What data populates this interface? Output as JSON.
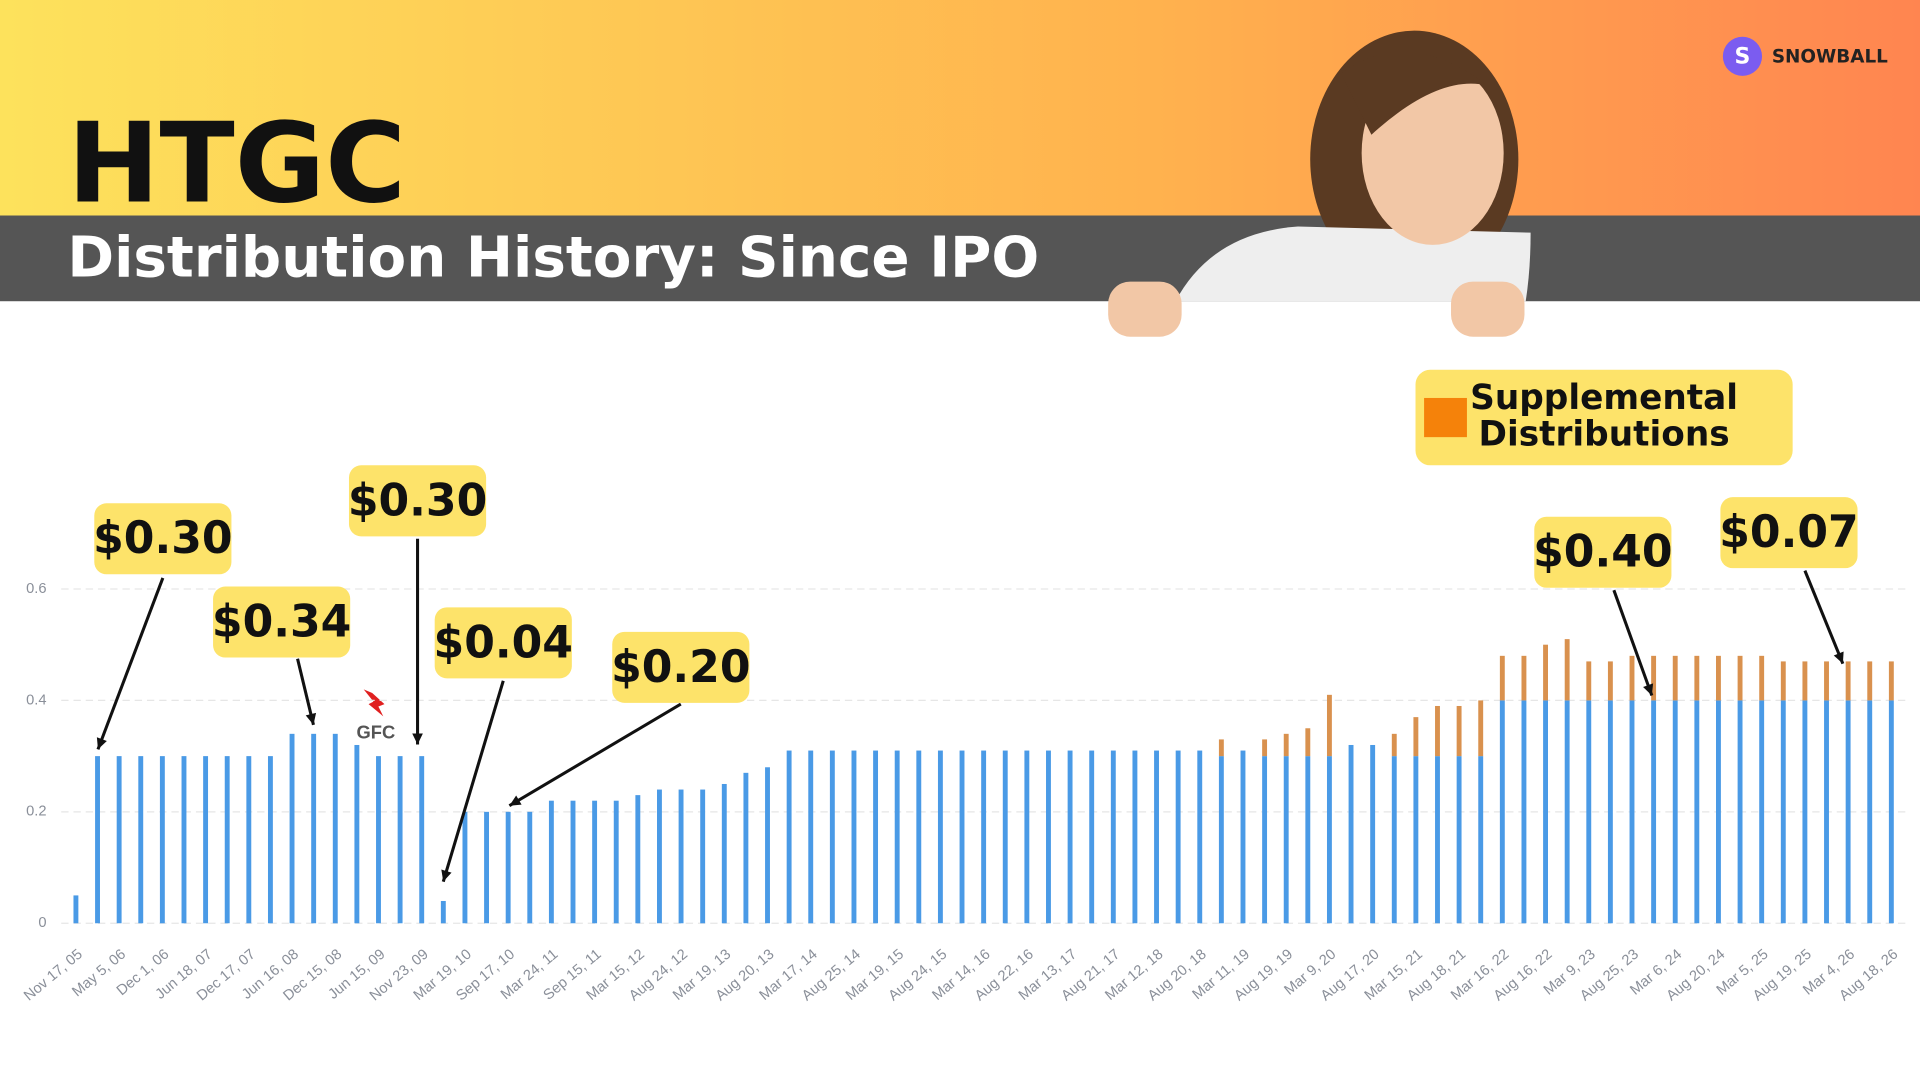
{
  "logo_letter": "S",
  "brand": "SNOWBALL",
  "title": "HTGC",
  "subtitle": "Distribution History: Since IPO",
  "chart_data": {
    "type": "bar",
    "stacked": true,
    "categories": [
      "Nov 17, 05",
      null,
      "May 5, 06",
      null,
      "Dec 1, 06",
      null,
      "Jun 18, 07",
      null,
      "Dec 17, 07",
      null,
      "Jun 16, 08",
      null,
      "Dec 15, 08",
      null,
      "Jun 15, 09",
      null,
      "Nov 23, 09",
      null,
      "Mar 19, 10",
      null,
      "Sep 17, 10",
      null,
      "Mar 24, 11",
      null,
      "Sep 15, 11",
      null,
      "Mar 15, 12",
      null,
      "Aug 24, 12",
      null,
      "Mar 19, 13",
      null,
      "Aug 20, 13",
      null,
      "Mar 17, 14",
      null,
      "Aug 25, 14",
      null,
      "Mar 19, 15",
      null,
      "Aug 24, 15",
      null,
      "Mar 14, 16",
      null,
      "Aug 22, 16",
      null,
      "Mar 13, 17",
      null,
      "Aug 21, 17",
      null,
      "Mar 12, 18",
      null,
      "Aug 20, 18",
      null,
      "Mar 11, 19",
      null,
      "Aug 19, 19",
      null,
      "Mar 9, 20",
      null,
      "Aug 17, 20",
      null,
      "Mar 15, 21",
      null,
      "Aug 18, 21",
      null,
      "Mar 16, 22",
      null,
      "Aug 16, 22",
      null,
      "Mar 9, 23",
      null,
      "Aug 25, 23",
      null,
      "Mar 6, 24",
      null,
      "Aug 20, 24",
      null,
      "Mar 5, 25",
      null,
      "Aug 19, 25",
      null,
      "Mar 4, 26",
      null,
      "Aug 18, 26"
    ],
    "series": [
      {
        "color": "#4a9ae6",
        "values": [
          0.05,
          0.3,
          0.3,
          0.3,
          0.3,
          0.3,
          0.3,
          0.3,
          0.3,
          0.3,
          0.34,
          0.34,
          0.34,
          0.32,
          0.3,
          0.3,
          0.3,
          0.04,
          0.2,
          0.2,
          0.2,
          0.2,
          0.22,
          0.22,
          0.22,
          0.22,
          0.23,
          0.24,
          0.24,
          0.24,
          0.25,
          0.27,
          0.28,
          0.31,
          0.31,
          0.31,
          0.31,
          0.31,
          0.31,
          0.31,
          0.31,
          0.31,
          0.31,
          0.31,
          0.31,
          0.31,
          0.31,
          0.31,
          0.31,
          0.31,
          0.31,
          0.31,
          0.31,
          0.3,
          0.31,
          0.3,
          0.3,
          0.3,
          0.3,
          0.32,
          0.32,
          0.3,
          0.3,
          0.3,
          0.3,
          0.3,
          0.4,
          0.4,
          0.4,
          0.4,
          0.4,
          0.4,
          0.4,
          0.4,
          0.4,
          0.4,
          0.4,
          0.4,
          0.4,
          0.4,
          0.4,
          0.4,
          0.4,
          0.4,
          0.4
        ]
      },
      {
        "name": "Supplemental Distributions",
        "color": "#d9914e",
        "values": [
          0,
          0,
          0,
          0,
          0,
          0,
          0,
          0,
          0,
          0,
          0,
          0,
          0,
          0,
          0,
          0,
          0,
          0,
          0,
          0,
          0,
          0,
          0,
          0,
          0,
          0,
          0,
          0,
          0,
          0,
          0,
          0,
          0,
          0,
          0,
          0,
          0,
          0,
          0,
          0,
          0,
          0,
          0,
          0,
          0,
          0,
          0,
          0,
          0,
          0,
          0,
          0,
          0,
          0.03,
          0,
          0.03,
          0.04,
          0.05,
          0.11,
          0,
          0,
          0.04,
          0.07,
          0.09,
          0.09,
          0.1,
          0.08,
          0.08,
          0.1,
          0.11,
          0.07,
          0.07,
          0.08,
          0.08,
          0.08,
          0.08,
          0.08,
          0.08,
          0.08,
          0.07,
          0.07,
          0.07,
          0.07,
          0.07,
          0.07
        ]
      }
    ],
    "legend_color": "#f5820a",
    "ylim": [
      0,
      0.6
    ],
    "yticks": [
      0,
      0.2,
      0.4,
      0.6
    ],
    "grid": true,
    "annotations": [
      "$0.30",
      "$0.34",
      "$0.30",
      "$0.04",
      "$0.20",
      "$0.40",
      "$0.07"
    ],
    "event_label": "GFC"
  }
}
